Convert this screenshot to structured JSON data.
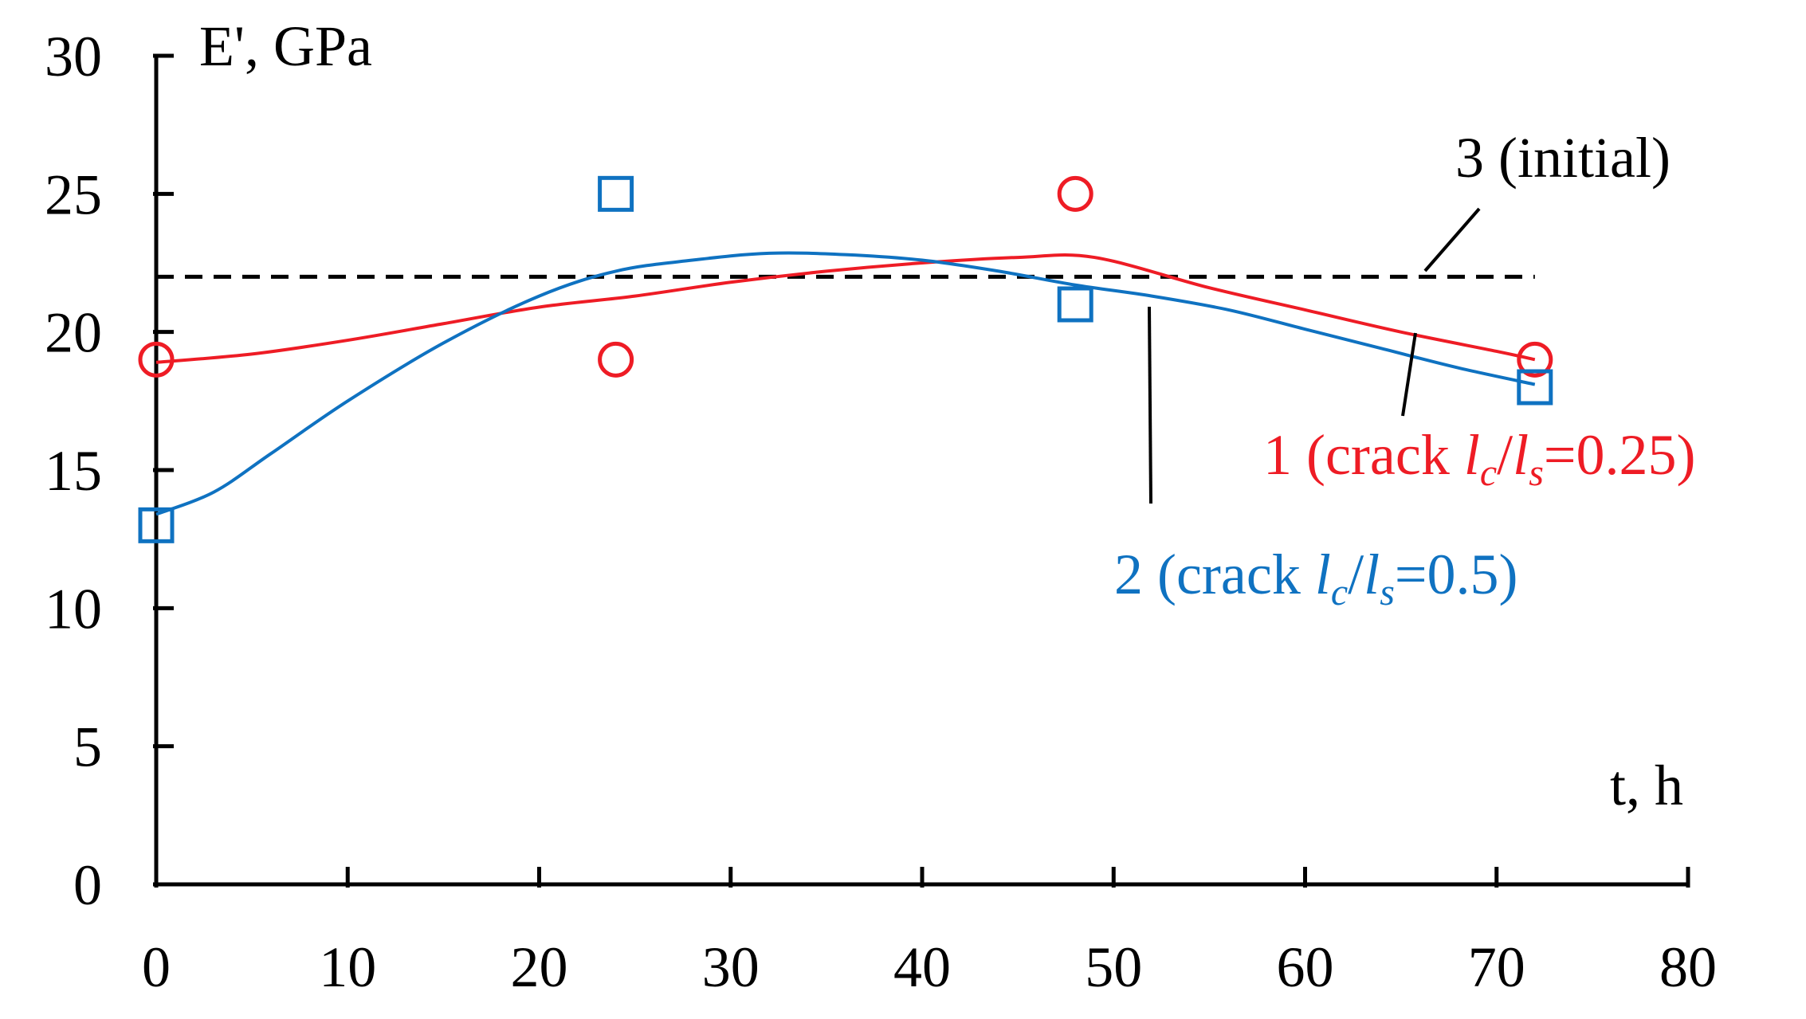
{
  "chart_data": {
    "type": "line",
    "title": "",
    "xlabel": "t, h",
    "ylabel": "E', GPa",
    "xlim": [
      0,
      80
    ],
    "ylim": [
      0,
      30
    ],
    "x_ticks": [
      "0",
      "10",
      "20",
      "30",
      "40",
      "50",
      "60",
      "70",
      "80"
    ],
    "y_ticks": [
      "0",
      "5",
      "10",
      "15",
      "20",
      "25",
      "30"
    ],
    "grid": false,
    "series": [
      {
        "name": "1 (crack lc/ls=0.25)",
        "label_prefix": "1 (crack ",
        "label_l1": "l",
        "label_sub1": "c",
        "label_slash": "/",
        "label_l2": "l",
        "label_sub2": "s",
        "label_suffix": "=0.25)",
        "color": "#ee1c25",
        "marker": "circle",
        "x": [
          0,
          24,
          48,
          72
        ],
        "values": [
          19,
          19,
          25,
          19
        ],
        "fit_curve": [
          [
            0,
            18.9
          ],
          [
            5,
            19.2
          ],
          [
            10,
            19.7
          ],
          [
            15,
            20.3
          ],
          [
            20,
            20.9
          ],
          [
            25,
            21.3
          ],
          [
            30,
            21.8
          ],
          [
            35,
            22.2
          ],
          [
            40,
            22.5
          ],
          [
            45,
            22.7
          ],
          [
            49,
            22.7
          ],
          [
            55,
            21.6
          ],
          [
            60,
            20.8
          ],
          [
            65,
            20.0
          ],
          [
            70,
            19.3
          ],
          [
            72,
            19.0
          ]
        ]
      },
      {
        "name": "2 (crack lc/ls=0.5)",
        "label_prefix": "2 (crack ",
        "label_l1": "l",
        "label_sub1": "c",
        "label_slash": "/",
        "label_l2": "l",
        "label_sub2": "s",
        "label_suffix": "=0.5)",
        "color": "#0f72c1",
        "marker": "square",
        "x": [
          0,
          24,
          48,
          72
        ],
        "values": [
          13,
          25,
          21,
          18
        ],
        "fit_curve": [
          [
            0,
            13.4
          ],
          [
            3,
            14.2
          ],
          [
            6,
            15.6
          ],
          [
            10,
            17.5
          ],
          [
            15,
            19.6
          ],
          [
            20,
            21.3
          ],
          [
            24,
            22.2
          ],
          [
            28,
            22.6
          ],
          [
            32,
            22.85
          ],
          [
            36,
            22.8
          ],
          [
            40,
            22.6
          ],
          [
            44,
            22.2
          ],
          [
            48,
            21.7
          ],
          [
            52,
            21.3
          ],
          [
            56,
            20.8
          ],
          [
            60,
            20.1
          ],
          [
            64,
            19.4
          ],
          [
            68,
            18.7
          ],
          [
            72,
            18.1
          ]
        ]
      },
      {
        "name": "3 (initial)",
        "color": "#000000",
        "style": "dashed",
        "x": [
          0,
          72
        ],
        "values": [
          22,
          22
        ]
      }
    ]
  }
}
